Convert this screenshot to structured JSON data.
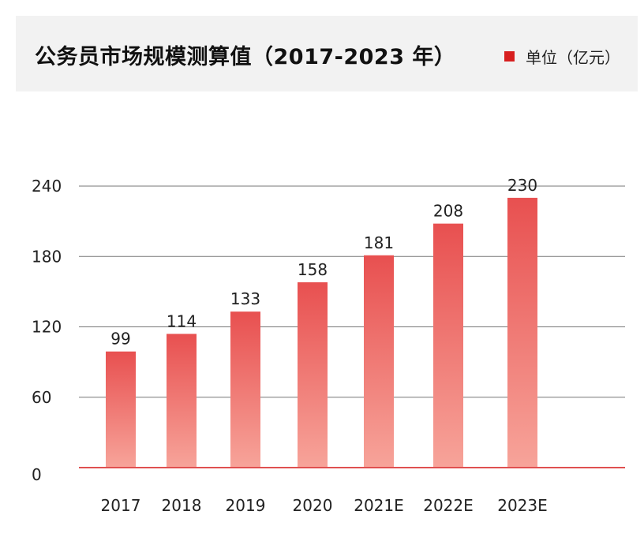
{
  "header": {
    "title": "公务员市场规模测算值（2017-2023 年）",
    "legend_label": "单位（亿元）"
  },
  "colors": {
    "bar_top": "#e85050",
    "bar_bottom": "#f7a49a",
    "baseline": "#e05050",
    "grid": "#777777",
    "legend": "#d71f1f"
  },
  "chart_data": {
    "type": "bar",
    "title": "公务员市场规模测算值（2017-2023 年）",
    "legend": [
      "单位（亿元）"
    ],
    "categories": [
      "2017",
      "2018",
      "2019",
      "2020",
      "2021E",
      "2022E",
      "2023E"
    ],
    "values": [
      99,
      114,
      133,
      158,
      181,
      208,
      230
    ],
    "value_labels": [
      "99",
      "114",
      "133",
      "158",
      "181",
      "208",
      "230"
    ],
    "yticks": [
      0,
      60,
      120,
      180,
      240
    ],
    "ylim": [
      0,
      240
    ],
    "xlabel": "",
    "ylabel": "",
    "grid": true
  }
}
